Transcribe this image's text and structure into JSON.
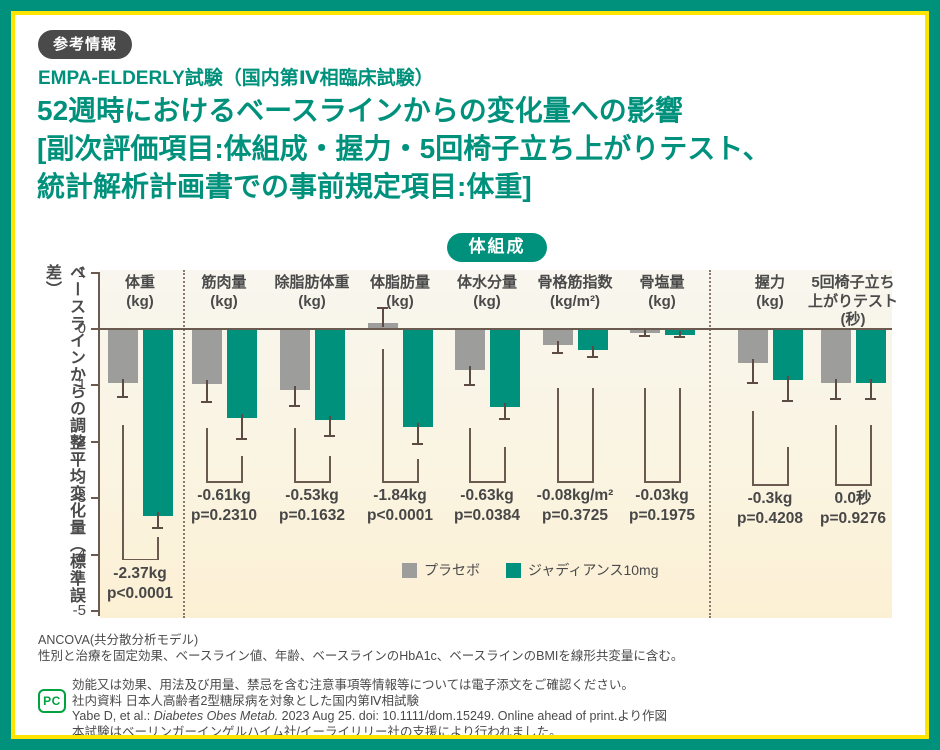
{
  "header": {
    "badge": "参考情報",
    "study": "EMPA-ELDERLY試験（国内第Ⅳ相臨床試験）",
    "title_lines": [
      "52週時におけるベースラインからの変化量への影響",
      "[副次評価項目:体組成・握力・5回椅子立ち上がりテスト、",
      "統計解析計画書での事前規定項目:体重]"
    ]
  },
  "section_badge": "体組成",
  "chart_data": {
    "type": "bar",
    "title": "体組成",
    "ylabel": "ベースラインからの調整平均変化量（標準誤差）",
    "ylim": [
      -5,
      1
    ],
    "yticks": [
      1,
      0,
      -1,
      -2,
      -3,
      -4,
      -5
    ],
    "grid": false,
    "legend_position": "bottom-center",
    "legend": [
      {
        "name": "プラセボ",
        "color": "#9D9D9B"
      },
      {
        "name": "ジャディアンス10mg",
        "color": "#00917C"
      }
    ],
    "groups": [
      {
        "label_lines": [
          "体重",
          "(kg)"
        ],
        "placebo": -0.95,
        "placebo_se": 0.25,
        "jardiance": -3.32,
        "jardiance_se": 0.2,
        "diff_label": "-2.37kg",
        "p_label": "p<0.0001",
        "bracket": {
          "left_top": -1.7,
          "right_top": -3.68,
          "bottom": -4.07
        }
      },
      {
        "label_lines": [
          "筋肉量",
          "(kg)"
        ],
        "placebo": -0.97,
        "placebo_se": 0.33,
        "jardiance": -1.58,
        "jardiance_se": 0.37,
        "diff_label": "-0.61kg",
        "p_label": "p=0.2310",
        "bracket": {
          "left_top": -1.75,
          "right_top": -2.25,
          "bottom": -2.7
        }
      },
      {
        "label_lines": [
          "除脂肪体重",
          "(kg)"
        ],
        "placebo": -1.09,
        "placebo_se": 0.27,
        "jardiance": -1.62,
        "jardiance_se": 0.27,
        "diff_label": "-0.53kg",
        "p_label": "p=0.1632",
        "bracket": {
          "left_top": -1.75,
          "right_top": -2.25,
          "bottom": -2.7
        }
      },
      {
        "label_lines": [
          "体脂肪量",
          "(kg)"
        ],
        "placebo": 0.1,
        "placebo_se": 0.27,
        "jardiance": -1.74,
        "jardiance_se": 0.3,
        "diff_label": "-1.84kg",
        "p_label": "p<0.0001",
        "bracket": {
          "left_top": -0.35,
          "right_top": -2.3,
          "bottom": -2.7
        }
      },
      {
        "label_lines": [
          "体水分量",
          "(kg)"
        ],
        "placebo": -0.73,
        "placebo_se": 0.27,
        "jardiance": -1.38,
        "jardiance_se": 0.22,
        "diff_label": "-0.63kg",
        "p_label": "p=0.0384",
        "bracket": {
          "left_top": -1.75,
          "right_top": -2.1,
          "bottom": -2.7
        }
      },
      {
        "label_lines": [
          "骨格筋指数",
          "(kg/m²)"
        ],
        "placebo": -0.29,
        "placebo_se": 0.13,
        "jardiance": -0.37,
        "jardiance_se": 0.13,
        "diff_label": "-0.08kg/m²",
        "p_label": "p=0.3725",
        "bracket": {
          "left_top": -1.05,
          "right_top": -1.05,
          "bottom": -2.7
        }
      },
      {
        "label_lines": [
          "骨塩量",
          "(kg)"
        ],
        "placebo": -0.07,
        "placebo_se": 0.05,
        "jardiance": -0.1,
        "jardiance_se": 0.05,
        "diff_label": "-0.03kg",
        "p_label": "p=0.1975",
        "bracket": {
          "left_top": -1.05,
          "right_top": -1.05,
          "bottom": -2.7
        }
      },
      {
        "label_lines": [
          "握力",
          "(kg)"
        ],
        "placebo": -0.61,
        "placebo_se": 0.35,
        "jardiance": -0.91,
        "jardiance_se": 0.36,
        "diff_label": "-0.3kg",
        "p_label": "p=0.4208",
        "bracket": {
          "left_top": -1.45,
          "right_top": -2.1,
          "bottom": -2.75
        }
      },
      {
        "label_lines": [
          "5回椅子立ち",
          "上がりテスト",
          "(秒)"
        ],
        "placebo": -0.96,
        "placebo_se": 0.28,
        "jardiance": -0.96,
        "jardiance_se": 0.28,
        "diff_label": "0.0秒",
        "p_label": "p=0.9276",
        "bracket": {
          "left_top": -1.7,
          "right_top": -1.7,
          "bottom": -2.75
        }
      }
    ]
  },
  "footnotes": [
    "ANCOVA(共分散分析モデル)",
    "性別と治療を固定効果、ベースライン値、年齢、ベースラインのHbA1c、ベースラインのBMIを線形共変量に含む。"
  ],
  "citation": {
    "pc_label": "PC",
    "line1": "効能又は効果、用法及び用量、禁忌を含む注意事項等情報等については電子添文をご確認ください。",
    "line2": "社内資料 日本人高齢者2型糖尿病を対象とした国内第Ⅳ相試験",
    "line3_pre": "Yabe D, et al.: ",
    "line3_italic": "Diabetes Obes Metab.",
    "line3_post": " 2023 Aug 25. doi: 10.1111/dom.15249. Online ahead of print.より作図",
    "line4": "本試験はベーリンガーインゲルハイム社/イーライリリー社の支援により行われました。"
  },
  "colors": {
    "brand_teal": "#00917C",
    "frame_yellow": "#FFE400",
    "bar_gray": "#9D9D9B",
    "text_dark": "#4A4A4A",
    "axis_line": "#6B5A50",
    "pc_green": "#00A33E"
  }
}
